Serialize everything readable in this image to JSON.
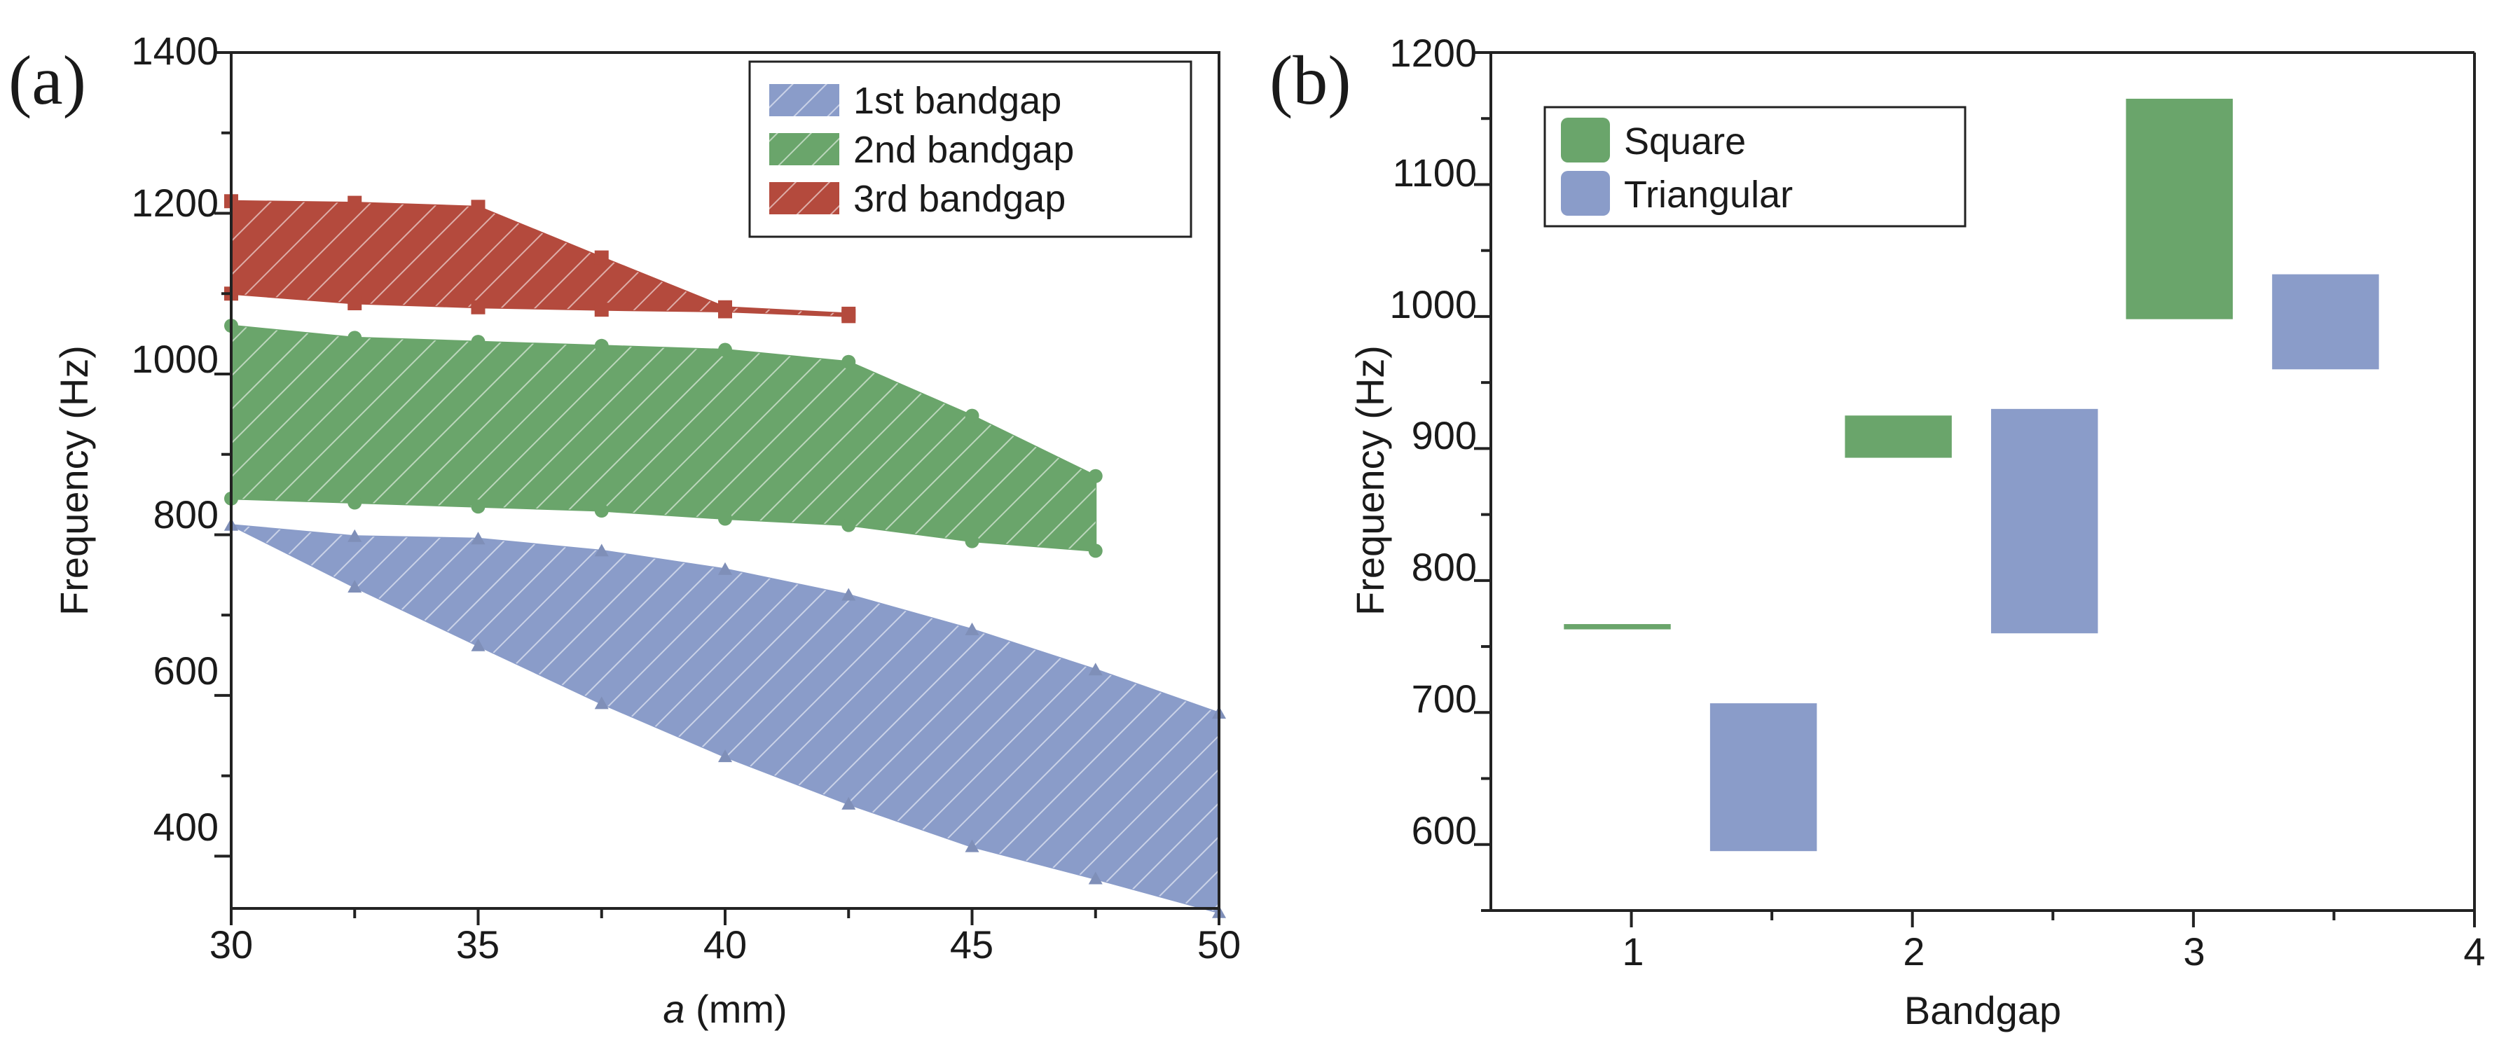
{
  "chart_data": [
    {
      "type": "area",
      "panel_label": "(a)",
      "title": "",
      "xlabel_italic": "a",
      "xlabel_rest": " (mm)",
      "ylabel": "Frequency (Hz)",
      "xlim": [
        30,
        50
      ],
      "ylim": [
        335,
        1400
      ],
      "xticks": [
        "30",
        "35",
        "40",
        "45",
        "50"
      ],
      "yticks": [
        "400",
        "600",
        "800",
        "1000",
        "1200",
        "1400"
      ],
      "legend_position": "top-right",
      "series": [
        {
          "name": "1st bandgap",
          "color": "#8a9cc9",
          "marker": "triangle",
          "x": [
            30,
            32.5,
            35,
            37.5,
            40,
            42.5,
            45,
            47.5,
            50
          ],
          "upper": [
            812,
            798,
            795,
            780,
            757,
            725,
            682,
            632,
            578
          ],
          "lower": [
            812,
            735,
            662,
            590,
            524,
            465,
            412,
            372,
            330
          ]
        },
        {
          "name": "2nd bandgap",
          "color": "#6aa56b",
          "marker": "circle",
          "x": [
            30,
            32.5,
            35,
            37.5,
            40,
            42.5,
            45,
            47.5
          ],
          "upper": [
            1060,
            1045,
            1040,
            1035,
            1030,
            1015,
            948,
            873
          ],
          "lower": [
            845,
            840,
            835,
            830,
            820,
            812,
            792,
            780
          ]
        },
        {
          "name": "3rd bandgap",
          "color": "#b44a3d",
          "marker": "square",
          "x": [
            30,
            32.5,
            35,
            37.5,
            40,
            42.5
          ],
          "upper": [
            1215,
            1213,
            1208,
            1145,
            1083,
            1075
          ],
          "lower": [
            1100,
            1088,
            1083,
            1080,
            1078,
            1072
          ]
        }
      ]
    },
    {
      "type": "bar",
      "panel_label": "(b)",
      "title": "",
      "xlabel": "Bandgap",
      "ylabel": "Frequency (Hz)",
      "xlim": [
        0.5,
        4
      ],
      "ylim": [
        550,
        1200
      ],
      "xticks": [
        "1",
        "2",
        "3",
        "4"
      ],
      "yticks": [
        "600",
        "700",
        "800",
        "900",
        "1000",
        "1100",
        "1200"
      ],
      "legend_position": "top-left",
      "categories": [
        "1",
        "2",
        "3"
      ],
      "series": [
        {
          "name": "Square",
          "color": "#6aa56b",
          "ranges": [
            [
              763,
              767
            ],
            [
              893,
              925
            ],
            [
              998,
              1165
            ]
          ]
        },
        {
          "name": "Triangular",
          "color": "#8a9cc9",
          "ranges": [
            [
              595,
              707
            ],
            [
              760,
              930
            ],
            [
              960,
              1032
            ]
          ]
        }
      ]
    }
  ]
}
